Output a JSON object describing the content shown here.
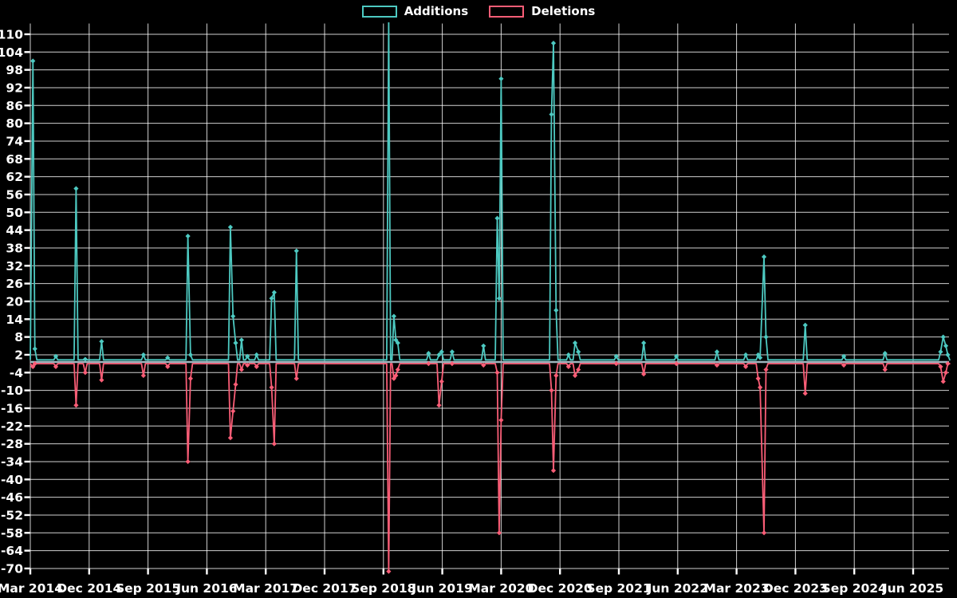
{
  "legend": {
    "additions": "Additions",
    "deletions": "Deletions"
  },
  "colors": {
    "additions": "#4dc9c1",
    "deletions": "#f95d76",
    "baseline": "#9fb6be",
    "grid": "#ffffff",
    "background": "#000000",
    "text": "#ffffff"
  },
  "chart_data": {
    "type": "line",
    "title": "",
    "legend_position": "top-center",
    "grid": true,
    "x_axis": {
      "tick_labels": [
        "Mar 2014",
        "Dec 2014",
        "Sep 2015",
        "Jun 2016",
        "Mar 2017",
        "Dec 2017",
        "Sep 2018",
        "Jun 2019",
        "Mar 2020",
        "Dec 2020",
        "Sep 2021",
        "Jun 2022",
        "Mar 2023",
        "Dec 2023",
        "Sep 2024",
        "Jun 2025"
      ],
      "tick_month_offsets": [
        0,
        9,
        18,
        27,
        36,
        45,
        54,
        63,
        72,
        81,
        90,
        99,
        108,
        117,
        126,
        135
      ]
    },
    "y_axis": {
      "min": -70,
      "max": 110,
      "tick_step": 6,
      "tick_labels": [
        110,
        104,
        98,
        92,
        86,
        80,
        74,
        68,
        62,
        56,
        50,
        44,
        38,
        32,
        26,
        20,
        14,
        8,
        2,
        -4,
        -10,
        -16,
        -22,
        -28,
        -34,
        -40,
        -46,
        -52,
        -58,
        -64,
        -70
      ]
    },
    "series": [
      {
        "name": "Additions",
        "color": "#4dc9c1",
        "baseline": 0.3
      },
      {
        "name": "Deletions",
        "color": "#f95d76",
        "baseline": -1
      }
    ],
    "points_format": [
      "months_since_mar_2014",
      "additions",
      "deletions"
    ],
    "points": [
      [
        0.4,
        101,
        -2
      ],
      [
        0.7,
        4,
        -1
      ],
      [
        3.9,
        1.5,
        -2
      ],
      [
        7.0,
        58,
        -15
      ],
      [
        8.4,
        0.5,
        -4
      ],
      [
        10.9,
        6.5,
        -6.5
      ],
      [
        17.3,
        2,
        -5
      ],
      [
        21.0,
        1,
        -2
      ],
      [
        24.1,
        42,
        -34
      ],
      [
        24.5,
        2,
        -6
      ],
      [
        30.6,
        45,
        -26
      ],
      [
        31.0,
        15,
        -17
      ],
      [
        31.4,
        6,
        -8
      ],
      [
        32.3,
        7,
        -3
      ],
      [
        33.2,
        1.5,
        -1.5
      ],
      [
        34.6,
        2,
        -2
      ],
      [
        36.9,
        21,
        -9
      ],
      [
        37.3,
        23,
        -28
      ],
      [
        40.7,
        37,
        -6
      ],
      [
        54.8,
        115,
        -71
      ],
      [
        55.6,
        15,
        -6
      ],
      [
        55.9,
        7,
        -5
      ],
      [
        56.2,
        6,
        -3
      ],
      [
        60.9,
        2.5,
        -1
      ],
      [
        62.5,
        2,
        -15
      ],
      [
        62.9,
        3,
        -7
      ],
      [
        64.5,
        3,
        -1
      ],
      [
        69.3,
        5,
        -1.5
      ],
      [
        71.4,
        48,
        -4
      ],
      [
        71.7,
        21,
        -58
      ],
      [
        72.0,
        95,
        -20
      ],
      [
        79.7,
        83,
        -10
      ],
      [
        80.0,
        107,
        -37
      ],
      [
        80.4,
        17,
        -5
      ],
      [
        82.3,
        2,
        -2
      ],
      [
        83.3,
        6,
        -5
      ],
      [
        83.8,
        3,
        -3
      ],
      [
        89.6,
        1.5,
        -1
      ],
      [
        93.8,
        6,
        -4.5
      ],
      [
        98.8,
        1.5,
        -1
      ],
      [
        105.0,
        3,
        -1.5
      ],
      [
        109.4,
        2,
        -2
      ],
      [
        111.3,
        2,
        -6
      ],
      [
        111.6,
        1,
        -9
      ],
      [
        112.2,
        35,
        -58
      ],
      [
        112.5,
        8,
        -3
      ],
      [
        118.5,
        12,
        -11
      ],
      [
        124.4,
        1.5,
        -1.5
      ],
      [
        130.7,
        2.5,
        -3
      ],
      [
        139.2,
        3,
        -2
      ],
      [
        139.6,
        8,
        -7
      ],
      [
        140.0,
        5,
        -4
      ],
      [
        140.3,
        2,
        -1
      ]
    ]
  }
}
